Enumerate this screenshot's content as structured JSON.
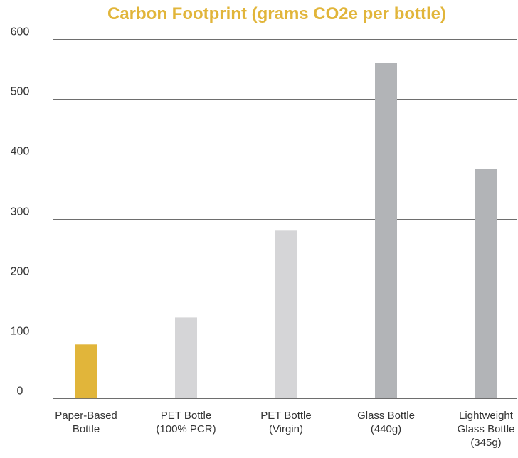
{
  "chart_data": {
    "type": "bar",
    "title": "Carbon Footprint (grams CO2e per bottle)",
    "xlabel": "",
    "ylabel": "",
    "categories": [
      [
        "Paper-Based",
        "Bottle"
      ],
      [
        "PET Bottle",
        "(100% PCR)"
      ],
      [
        "PET Bottle",
        "(Virgin)"
      ],
      [
        "Glass Bottle",
        "(440g)"
      ],
      [
        "Lightweight",
        "Glass Bottle",
        "(345g)"
      ]
    ],
    "values": [
      90,
      135,
      280,
      560,
      383
    ],
    "bar_colors": [
      "#e1b53a",
      "#d5d5d7",
      "#d5d5d7",
      "#b2b4b7",
      "#b2b4b7"
    ],
    "yticks": [
      0,
      100,
      200,
      300,
      400,
      500,
      600
    ],
    "ylim": [
      0,
      600
    ],
    "grid": true,
    "legend": "none",
    "colors": {
      "title": "#e1b53a",
      "gridline": "#6e6e6e",
      "text": "#333333"
    }
  }
}
